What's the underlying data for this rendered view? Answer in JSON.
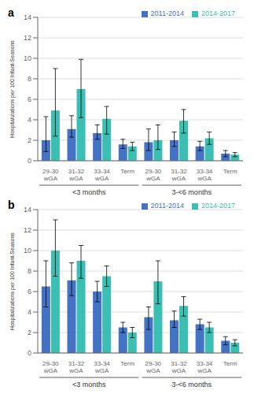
{
  "chart_data": [
    {
      "type": "bar",
      "title": "a",
      "ylabel": "Hospitalizations per 100 Infant-Seasons",
      "categories": [
        "29-30\nwGA",
        "31-32\nwGA",
        "33-34\nwGA",
        "Term",
        "29-30\nwGA",
        "31-32\nwGA",
        "33-34\nwGA",
        "Term"
      ],
      "group_labels": [
        "<3 months",
        "3-<6 months"
      ],
      "series": [
        {
          "name": "2011-2014",
          "color": "#4472C4",
          "values": [
            2.0,
            3.1,
            2.7,
            1.6,
            1.8,
            2.0,
            1.4,
            0.7
          ],
          "err_lo": [
            1.1,
            0.8,
            0.6,
            0.4,
            0.8,
            0.6,
            0.4,
            0.3
          ],
          "err_hi": [
            2.3,
            1.3,
            0.8,
            0.5,
            1.3,
            0.8,
            0.5,
            0.3
          ]
        },
        {
          "name": "2014-2017",
          "color": "#3BBFB2",
          "values": [
            4.9,
            7.0,
            4.1,
            1.4,
            2.0,
            3.9,
            2.2,
            0.6
          ],
          "err_lo": [
            2.5,
            2.8,
            1.5,
            0.4,
            0.9,
            1.2,
            0.6,
            0.2
          ],
          "err_hi": [
            4.1,
            2.9,
            1.2,
            0.4,
            1.5,
            1.1,
            0.6,
            0.2
          ]
        }
      ],
      "ylim": [
        0,
        14
      ],
      "yticks": [
        0,
        2,
        4,
        6,
        8,
        10,
        12,
        14
      ],
      "grid": true,
      "legend": "upper right"
    },
    {
      "type": "bar",
      "title": "b",
      "ylabel": "Hospitalizations per 100 Infant-Seasons",
      "categories": [
        "29-30\nwGA",
        "31-32\nwGA",
        "33-34\nwGA",
        "Term",
        "29-30\nwGA",
        "31-32\nwGA",
        "33-34\nwGA",
        "Term"
      ],
      "group_labels": [
        "<3 months",
        "3-<6 months"
      ],
      "series": [
        {
          "name": "2011-2014",
          "color": "#4472C4",
          "values": [
            6.5,
            7.1,
            6.0,
            2.5,
            3.5,
            3.2,
            2.8,
            1.2
          ],
          "err_lo": [
            2.0,
            1.5,
            1.0,
            0.5,
            1.2,
            0.7,
            0.5,
            0.4
          ],
          "err_hi": [
            2.5,
            1.7,
            1.0,
            0.5,
            1.0,
            0.9,
            0.5,
            0.4
          ]
        },
        {
          "name": "2014-2017",
          "color": "#3BBFB2",
          "values": [
            10.0,
            9.0,
            7.5,
            2.0,
            7.0,
            4.6,
            2.5,
            1.0
          ],
          "err_lo": [
            2.5,
            1.7,
            1.0,
            0.5,
            2.2,
            1.0,
            0.5,
            0.3
          ],
          "err_hi": [
            3.0,
            1.5,
            1.0,
            0.5,
            2.0,
            0.9,
            0.5,
            0.3
          ]
        }
      ],
      "ylim": [
        0,
        14
      ],
      "yticks": [
        0,
        2,
        4,
        6,
        8,
        10,
        12,
        14
      ],
      "grid": true,
      "legend": "upper right"
    }
  ]
}
